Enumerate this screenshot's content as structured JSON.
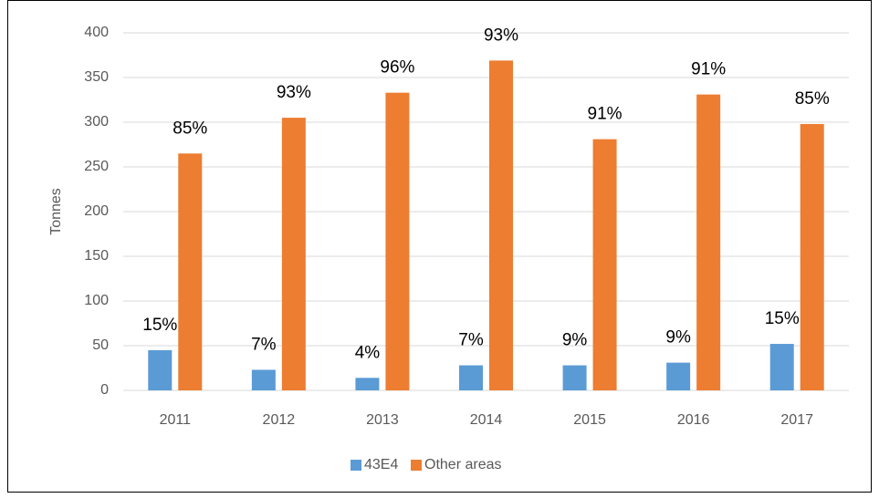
{
  "chart_data": {
    "type": "bar",
    "y_label": "Tonnes",
    "categories": [
      "2011",
      "2012",
      "2013",
      "2014",
      "2015",
      "2016",
      "2017"
    ],
    "series": [
      {
        "name": "43E4",
        "color": "#5b9bd5",
        "values": [
          45,
          23,
          14,
          28,
          28,
          31,
          52
        ],
        "labels": [
          "15%",
          "7%",
          "4%",
          "7%",
          "9%",
          "9%",
          "15%"
        ]
      },
      {
        "name": "Other areas",
        "color": "#ed7d31",
        "values": [
          265,
          305,
          333,
          369,
          281,
          331,
          298
        ],
        "labels": [
          "85%",
          "93%",
          "96%",
          "93%",
          "91%",
          "91%",
          "85%"
        ]
      }
    ],
    "ylim": [
      0,
      400
    ],
    "yticks": [
      0,
      50,
      100,
      150,
      200,
      250,
      300,
      350,
      400
    ],
    "grid": true,
    "legend": "bottom"
  }
}
